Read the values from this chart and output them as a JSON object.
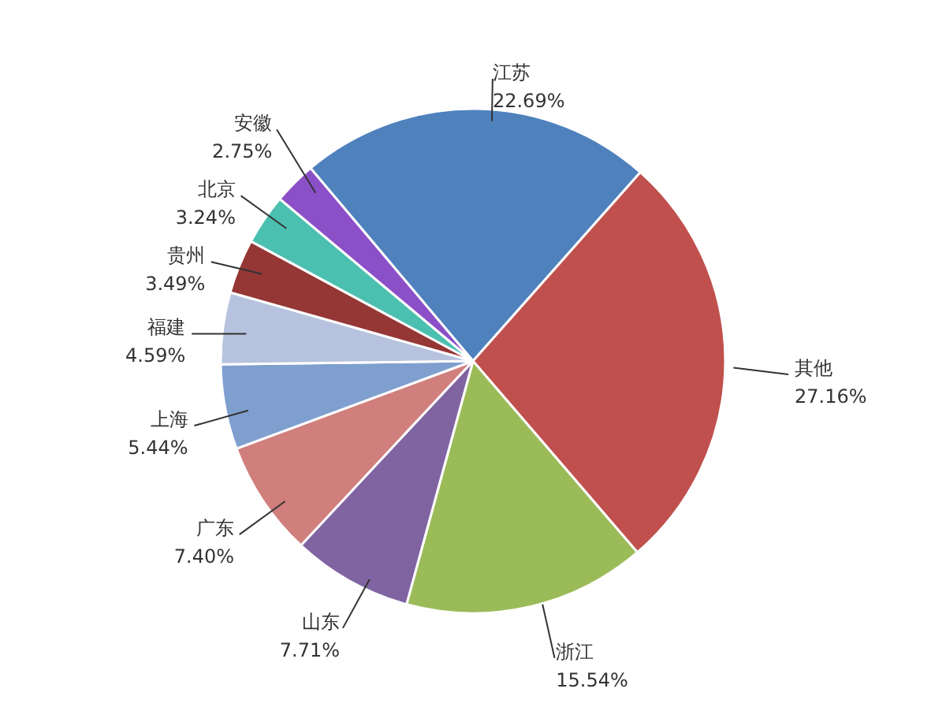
{
  "chart_data": {
    "type": "pie",
    "categories": [
      "江苏",
      "其他",
      "浙江",
      "山东",
      "广东",
      "上海",
      "福建",
      "贵州",
      "北京",
      "安徽"
    ],
    "values": [
      22.69,
      27.16,
      15.54,
      7.71,
      7.4,
      5.44,
      4.59,
      3.49,
      3.24,
      2.75
    ],
    "value_labels": [
      "22.69%",
      "27.16%",
      "15.54%",
      "7.71%",
      "7.40%",
      "5.44%",
      "4.59%",
      "3.49%",
      "3.24%",
      "2.75%"
    ],
    "colors": [
      "#4f81bd",
      "#c0504d",
      "#9bbb59",
      "#8064a2",
      "#d07f7d",
      "#7f9fcf",
      "#b7c3de",
      "#953735",
      "#4bbfb0",
      "#8b4fc8"
    ]
  }
}
